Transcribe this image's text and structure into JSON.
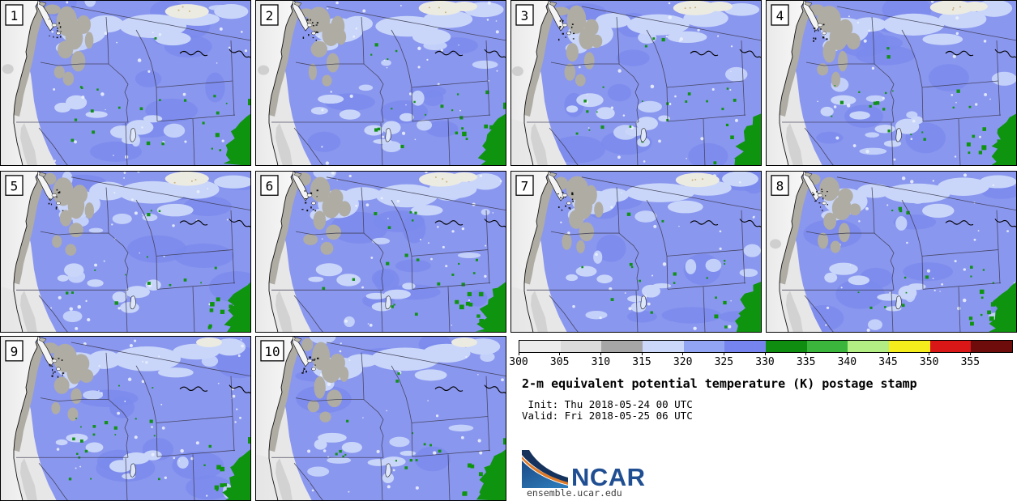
{
  "figure": {
    "title": "2-m equivalent potential temperature (K) postage stamp",
    "init_line": " Init: Thu 2018-05-24 00 UTC",
    "valid_line": "Valid: Fri 2018-05-25 06 UTC"
  },
  "panels": [
    {
      "label": "1",
      "seed": 3
    },
    {
      "label": "2",
      "seed": 17
    },
    {
      "label": "3",
      "seed": 29
    },
    {
      "label": "4",
      "seed": 41
    },
    {
      "label": "5",
      "seed": 53
    },
    {
      "label": "6",
      "seed": 67
    },
    {
      "label": "7",
      "seed": 79
    },
    {
      "label": "8",
      "seed": 97
    },
    {
      "label": "9",
      "seed": 113
    },
    {
      "label": "10",
      "seed": 131
    }
  ],
  "colorbar": {
    "tick_labels": [
      "300",
      "305",
      "310",
      "315",
      "320",
      "325",
      "330",
      "335",
      "340",
      "345",
      "350",
      "355"
    ],
    "segment_colors": [
      "#ececec",
      "#dbdbdb",
      "#a6a6a6",
      "#cbd8fa",
      "#92a5f4",
      "#7584ee",
      "#0e8d11",
      "#3cb53c",
      "#b3ee85",
      "#f6ee1c",
      "#d91717",
      "#6e0b0b"
    ]
  },
  "logo": {
    "name": "NCAR",
    "url_text": "ensemble.ucar.edu",
    "navy": "#16335e",
    "orange": "#e07b28",
    "blue": "#2d7ab9",
    "wordmark_color": "#1f4e92"
  },
  "map_palette": {
    "ocean_left": "#e9e9e9",
    "ocean_coast": "#fbfbfb",
    "land_blue": "#8a97ef",
    "dark_blue": "#7b8aec",
    "light_blue": "#c9d6f9",
    "pale_dot": "#e9effd",
    "coast_gray": "#afaca4",
    "valley_gray": "#e7e7e7",
    "mid_gray": "#d2d2d2",
    "green_spot": "#12911a",
    "green_blob": "#0f9410",
    "state_line": "#3e3e54",
    "coast_line": "#151515",
    "tan_patch": "#ecebe2"
  }
}
